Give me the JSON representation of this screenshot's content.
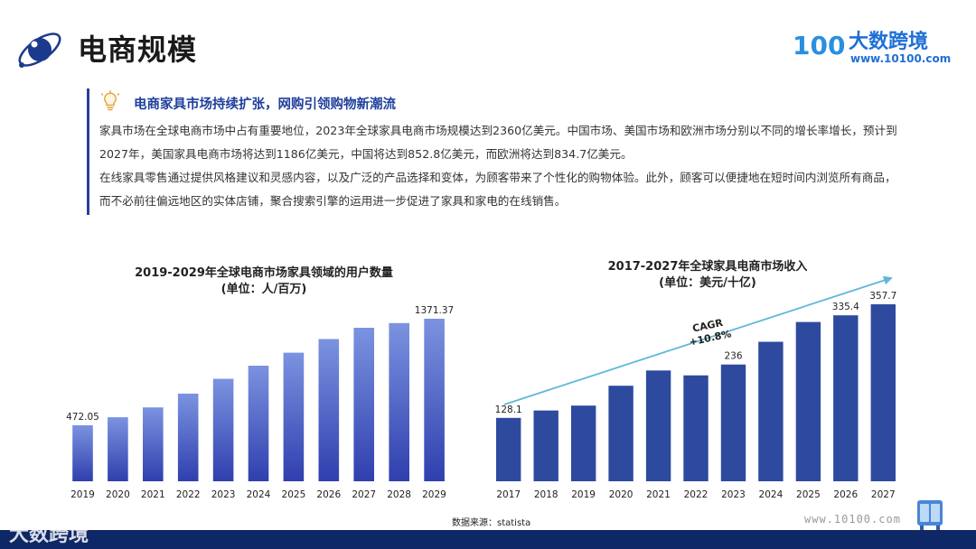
{
  "header": {
    "title": "电商规模",
    "brand_name": "大数跨境",
    "brand_url": "www.10100.com",
    "brand_logo_text": "100"
  },
  "summary": {
    "heading": "电商家具市场持续扩张，网购引领购物新潮流",
    "paragraph1": "家具市场在全球电商市场中占有重要地位，2023年全球家具电商市场规模达到2360亿美元。中国市场、美国市场和欧洲市场分别以不同的增长率增长，预计到2027年，美国家具电商市场将达到1186亿美元，中国将达到852.8亿美元，而欧洲将达到834.7亿美元。",
    "paragraph2": "在线家具零售通过提供风格建议和灵感内容，以及广泛的产品选择和变体，为顾客带来了个性化的购物体验。此外，顾客可以便捷地在短时间内浏览所有商品，而不必前往偏远地区的实体店铺，聚合搜索引擎的运用进一步促进了家具和家电的在线销售。"
  },
  "chart_data": [
    {
      "type": "bar",
      "title": "2019-2029年全球电商市场家具领域的用户数量",
      "subtitle": "(单位：人/百万)",
      "categories": [
        "2019",
        "2020",
        "2021",
        "2022",
        "2023",
        "2024",
        "2025",
        "2026",
        "2027",
        "2028",
        "2029"
      ],
      "values": [
        472.05,
        540,
        623,
        740,
        865,
        975,
        1085,
        1200,
        1295,
        1335,
        1371.37
      ],
      "labeled_values": {
        "2019": "472.05",
        "2029": "1371.37"
      },
      "ylim": [
        0,
        1371.37
      ],
      "bar_color_top": "#7b93e0",
      "bar_color_bottom": "#2f3fae"
    },
    {
      "type": "bar",
      "title": "2017-2027年全球家具电商市场收入",
      "subtitle": "(单位：美元/十亿)",
      "categories": [
        "2017",
        "2018",
        "2019",
        "2020",
        "2021",
        "2022",
        "2023",
        "2024",
        "2025",
        "2026",
        "2027"
      ],
      "values": [
        128.1,
        143,
        153,
        193,
        224,
        214,
        236,
        282,
        322,
        335.4,
        357.7
      ],
      "labeled_values": {
        "2017": "128.1",
        "2023": "236",
        "2026": "335.4",
        "2027": "357.7"
      },
      "ylim": [
        0,
        357.7
      ],
      "bar_color": "#2e4a9e",
      "annotation": {
        "label": "CAGR",
        "value": "+10.8%"
      },
      "trend_color": "#5fb7d9"
    }
  ],
  "footer": {
    "source": "数据来源：statista",
    "site_url": "www.10100.com",
    "watermark": "大数跨境",
    "bar_color": "#0e2766"
  }
}
